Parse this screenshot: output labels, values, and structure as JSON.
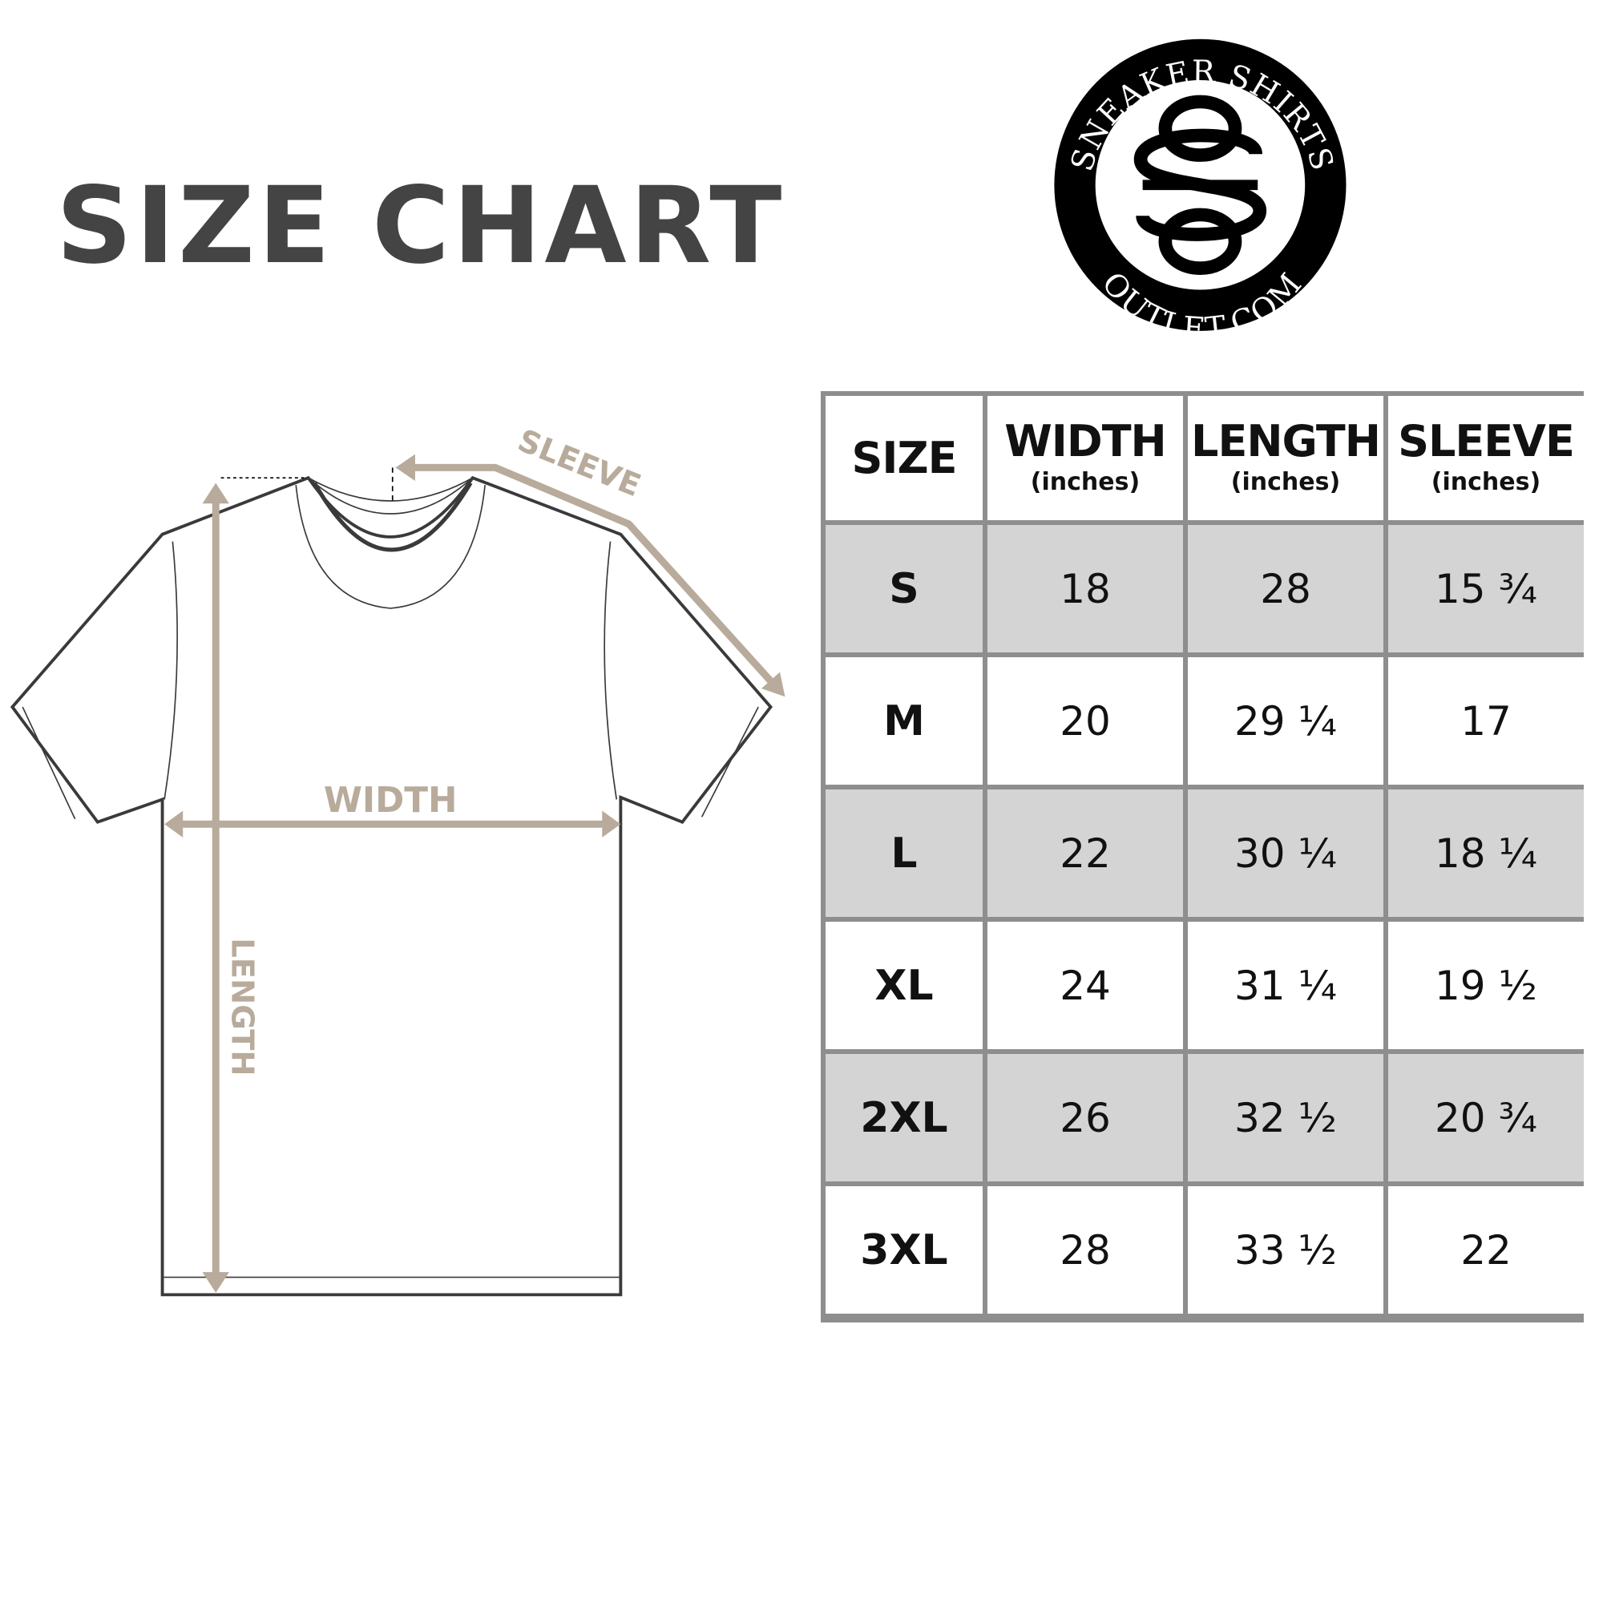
{
  "title": {
    "word1": "SIZE",
    "word2": "CHART"
  },
  "logo": {
    "top_text": "SNEAKER SHIRTS",
    "bottom_text": "OUTLET.COM",
    "monogram": "SO"
  },
  "diagram": {
    "labels": {
      "sleeve": "SLEEVE",
      "width": "WIDTH",
      "length": "LENGTH"
    },
    "colors": {
      "arrow": "#b8ab9b",
      "outline": "#3a3a3a"
    }
  },
  "table": {
    "headers": [
      {
        "label": "SIZE",
        "unit": ""
      },
      {
        "label": "WIDTH",
        "unit": "(inches)"
      },
      {
        "label": "LENGTH",
        "unit": "(inches)"
      },
      {
        "label": "SLEEVE",
        "unit": "(inches)"
      }
    ],
    "rows": [
      {
        "size": "S",
        "width": "18",
        "length": "28",
        "sleeve": "15 ¾"
      },
      {
        "size": "M",
        "width": "20",
        "length": "29 ¼",
        "sleeve": "17"
      },
      {
        "size": "L",
        "width": "22",
        "length": "30 ¼",
        "sleeve": "18 ¼"
      },
      {
        "size": "XL",
        "width": "24",
        "length": "31 ¼",
        "sleeve": "19 ½"
      },
      {
        "size": "2XL",
        "width": "26",
        "length": "32 ½",
        "sleeve": "20 ¾"
      },
      {
        "size": "3XL",
        "width": "28",
        "length": "33 ½",
        "sleeve": "22"
      }
    ],
    "colors": {
      "border": "#8e8e8e",
      "shaded_row": "#d4d4d4"
    }
  }
}
